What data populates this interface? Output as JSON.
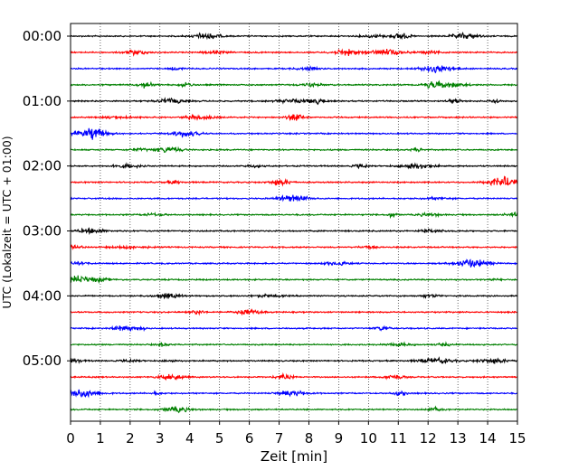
{
  "chart_data": {
    "type": "line",
    "title": "",
    "xlabel": "Zeit  [min]",
    "ylabel": "UTC (Lokalzeit = UTC + 01:00)",
    "xlim": [
      0,
      15
    ],
    "x_ticks": [
      "0",
      "1",
      "2",
      "3",
      "4",
      "5",
      "6",
      "7",
      "8",
      "9",
      "10",
      "11",
      "12",
      "13",
      "14",
      "15"
    ],
    "y_ticks": [
      "00:00",
      "01:00",
      "02:00",
      "03:00",
      "04:00",
      "05:00"
    ],
    "grid": "vertical dotted lines at each minute",
    "trace_interval_min": 15,
    "trace_colors": [
      "#000000",
      "#ff0000",
      "#0000ff",
      "#008000"
    ],
    "traces": [
      {
        "start": "00:00",
        "color": "#000000"
      },
      {
        "start": "00:15",
        "color": "#ff0000"
      },
      {
        "start": "00:30",
        "color": "#0000ff"
      },
      {
        "start": "00:45",
        "color": "#008000"
      },
      {
        "start": "01:00",
        "color": "#000000"
      },
      {
        "start": "01:15",
        "color": "#ff0000"
      },
      {
        "start": "01:30",
        "color": "#0000ff"
      },
      {
        "start": "01:45",
        "color": "#008000"
      },
      {
        "start": "02:00",
        "color": "#000000"
      },
      {
        "start": "02:15",
        "color": "#ff0000"
      },
      {
        "start": "02:30",
        "color": "#0000ff"
      },
      {
        "start": "02:45",
        "color": "#008000"
      },
      {
        "start": "03:00",
        "color": "#000000"
      },
      {
        "start": "03:15",
        "color": "#ff0000"
      },
      {
        "start": "03:30",
        "color": "#0000ff"
      },
      {
        "start": "03:45",
        "color": "#008000"
      },
      {
        "start": "04:00",
        "color": "#000000"
      },
      {
        "start": "04:15",
        "color": "#ff0000"
      },
      {
        "start": "04:30",
        "color": "#0000ff"
      },
      {
        "start": "04:45",
        "color": "#008000"
      },
      {
        "start": "05:00",
        "color": "#000000"
      },
      {
        "start": "05:15",
        "color": "#ff0000"
      },
      {
        "start": "05:30",
        "color": "#0000ff"
      },
      {
        "start": "05:45",
        "color": "#008000"
      }
    ]
  }
}
